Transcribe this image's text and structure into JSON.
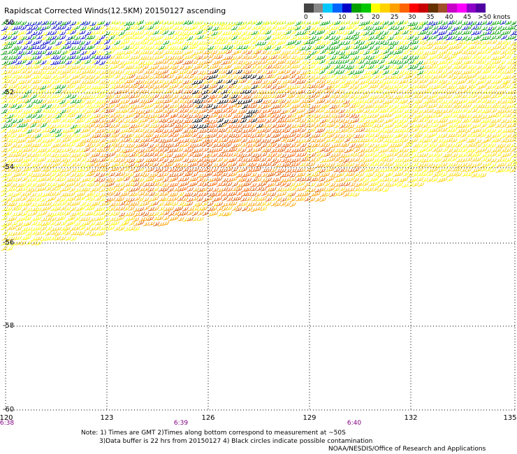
{
  "title": "Rapidscat Corrected Winds(12.5KM) 20150127 ascending",
  "legend": {
    "labels": [
      "0",
      "5",
      "10",
      "15",
      "20",
      "25",
      "30",
      "35",
      "40",
      "45",
      ">50 knots"
    ],
    "colors": [
      "#444444",
      "#888888",
      "#00c8ff",
      "#0064ff",
      "#0000c8",
      "#00a000",
      "#00c800",
      "#ffff00",
      "#ffd200",
      "#ffa000",
      "#ff6400",
      "#ff0000",
      "#c80000",
      "#643200",
      "#a05028",
      "#c800c8",
      "#ff00ff",
      "#8c00c8",
      "#5000a0"
    ]
  },
  "axes": {
    "lat_labels": [
      "-50",
      "-52",
      "-54",
      "-56",
      "-58",
      "-60"
    ],
    "lon_labels": [
      "120",
      "123",
      "126",
      "129",
      "132",
      "135"
    ],
    "time_labels": [
      "6:38",
      "6:39",
      "6:40"
    ]
  },
  "notes": [
    "Note: 1) Times are GMT 2)Times along bottom correspond to measurement at ~50S",
    "3)Data buffer is 22 hrs from 20150127 4) Black circles indicate possible contamination"
  ],
  "credit": "NOAA/NESDIS/Office of Research and Applications",
  "colors": {
    "grid": "#000000",
    "grid_top": "#00c800",
    "time_label": "#800080",
    "wind_colors": [
      "#ffd200",
      "#ffff00",
      "#00a000",
      "#0000c8",
      "#e05a00",
      "#ffa000",
      "#ff6400",
      "#000000"
    ]
  }
}
